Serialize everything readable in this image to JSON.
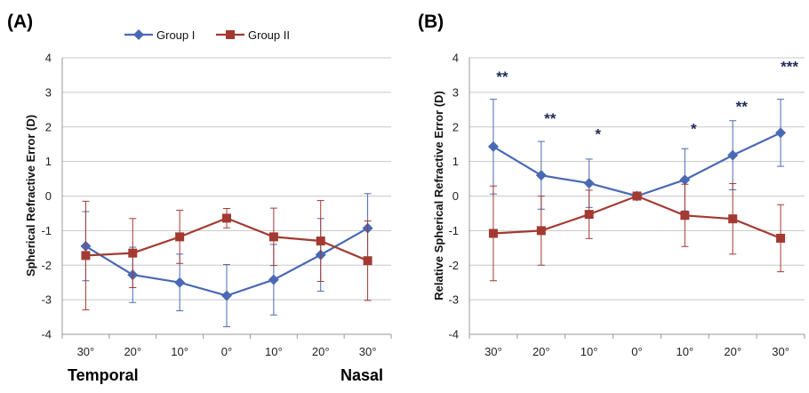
{
  "colors": {
    "group1": "#4a69b5",
    "group2": "#a33a32",
    "grid": "#c8c8c8",
    "axis": "#9a9a9a",
    "stars": "#1f2a56"
  },
  "legend": {
    "position": "top-center",
    "items": [
      {
        "label": "Group I",
        "marker": "diamond",
        "color": "#4a69b5"
      },
      {
        "label": "Group II",
        "marker": "square",
        "color": "#a33a32"
      }
    ]
  },
  "direction_labels": {
    "left": "Temporal",
    "right": "Nasal"
  },
  "chart_data": [
    {
      "panel": "(A)",
      "type": "line",
      "ylabel": "Spherical Refractive Error (D)",
      "categories": [
        "30°",
        "20°",
        "10°",
        "0°",
        "10°",
        "20°",
        "30°"
      ],
      "ylim": [
        -4,
        4
      ],
      "yticks": [
        -4,
        -3,
        -2,
        -1,
        0,
        1,
        2,
        3,
        4
      ],
      "grid": true,
      "series": [
        {
          "name": "Group I",
          "values": [
            -1.45,
            -2.28,
            -2.5,
            -2.88,
            -2.42,
            -1.7,
            -0.93
          ],
          "error": [
            1.0,
            0.8,
            0.82,
            0.9,
            1.02,
            1.05,
            1.0
          ]
        },
        {
          "name": "Group II",
          "values": [
            -1.72,
            -1.65,
            -1.18,
            -0.64,
            -1.18,
            -1.3,
            -1.87
          ],
          "error": [
            1.57,
            1.0,
            0.77,
            0.28,
            0.83,
            1.17,
            1.15
          ]
        }
      ],
      "annotations": []
    },
    {
      "panel": "(B)",
      "type": "line",
      "ylabel": "Relative Spherical Refractive Error (D)",
      "categories": [
        "30°",
        "20°",
        "10°",
        "0°",
        "10°",
        "20°",
        "30°"
      ],
      "ylim": [
        -4,
        4
      ],
      "yticks": [
        -4,
        -3,
        -2,
        -1,
        0,
        1,
        2,
        3,
        4
      ],
      "grid": true,
      "series": [
        {
          "name": "Group I",
          "values": [
            1.43,
            0.6,
            0.37,
            0.0,
            0.47,
            1.18,
            1.83
          ],
          "error": [
            1.37,
            0.98,
            0.7,
            0.0,
            0.9,
            1.0,
            0.97
          ]
        },
        {
          "name": "Group II",
          "values": [
            -1.08,
            -1.0,
            -0.53,
            0.0,
            -0.56,
            -0.66,
            -1.22
          ],
          "error": [
            1.37,
            1.0,
            0.7,
            0.0,
            0.9,
            1.02,
            0.97
          ]
        }
      ],
      "annotations": [
        {
          "text": "**",
          "x_index": 0,
          "y": 3.3
        },
        {
          "text": "**",
          "x_index": 1,
          "y": 2.1
        },
        {
          "text": "*",
          "x_index": 2,
          "y": 1.65
        },
        {
          "text": "*",
          "x_index": 4,
          "y": 1.8
        },
        {
          "text": "**",
          "x_index": 5,
          "y": 2.45
        },
        {
          "text": "***",
          "x_index": 6,
          "y": 3.6
        }
      ]
    }
  ]
}
